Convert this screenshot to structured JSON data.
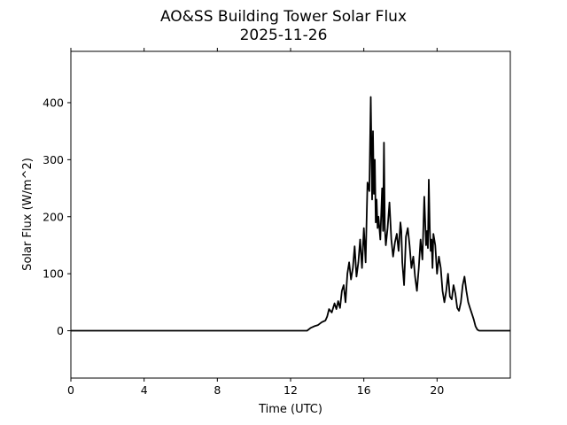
{
  "chart_data": {
    "type": "line",
    "title": "AO&SS Building Tower Solar Flux",
    "subtitle": "2025-11-26",
    "xlabel": "Time (UTC)",
    "ylabel": "Solar Flux (W/m^2)",
    "xlim": [
      0,
      24
    ],
    "ylim": [
      -83,
      490
    ],
    "xticks": [
      0,
      4,
      8,
      12,
      16,
      20
    ],
    "yticks": [
      0,
      100,
      200,
      300,
      400
    ],
    "grid": false,
    "line_color": "#000000",
    "series": [
      {
        "x": [
          0,
          12.9,
          13.1,
          13.3,
          13.5,
          13.7,
          13.9,
          14.0,
          14.1,
          14.25,
          14.4,
          14.5,
          14.6,
          14.7,
          14.8,
          14.9,
          15.0,
          15.1,
          15.2,
          15.3,
          15.4,
          15.5,
          15.6,
          15.7,
          15.8,
          15.9,
          16.0,
          16.1,
          16.2,
          16.3,
          16.38,
          16.45,
          16.5,
          16.55,
          16.6,
          16.65,
          16.7,
          16.75,
          16.8,
          16.9,
          17.0,
          17.05,
          17.1,
          17.15,
          17.2,
          17.3,
          17.4,
          17.5,
          17.6,
          17.7,
          17.8,
          17.9,
          18.0,
          18.05,
          18.1,
          18.2,
          18.3,
          18.4,
          18.5,
          18.6,
          18.7,
          18.8,
          18.9,
          19.0,
          19.1,
          19.2,
          19.3,
          19.4,
          19.45,
          19.5,
          19.55,
          19.6,
          19.65,
          19.7,
          19.75,
          19.8,
          19.9,
          20.0,
          20.1,
          20.2,
          20.3,
          20.4,
          20.5,
          20.6,
          20.7,
          20.8,
          20.9,
          21.0,
          21.1,
          21.2,
          21.3,
          21.4,
          21.5,
          21.6,
          21.7,
          21.8,
          21.9,
          22.0,
          22.1,
          22.2,
          22.3,
          22.4,
          22.5,
          24
        ],
        "y": [
          0,
          0,
          5,
          8,
          10,
          15,
          18,
          25,
          38,
          32,
          48,
          38,
          52,
          40,
          70,
          80,
          50,
          100,
          120,
          90,
          110,
          148,
          95,
          120,
          160,
          110,
          180,
          120,
          260,
          245,
          410,
          230,
          350,
          240,
          300,
          190,
          230,
          180,
          200,
          160,
          250,
          175,
          330,
          180,
          150,
          180,
          225,
          160,
          130,
          155,
          170,
          140,
          190,
          175,
          120,
          80,
          165,
          180,
          150,
          110,
          130,
          95,
          70,
          110,
          160,
          125,
          235,
          150,
          175,
          145,
          265,
          180,
          140,
          160,
          110,
          170,
          150,
          100,
          130,
          110,
          70,
          50,
          70,
          100,
          60,
          55,
          80,
          65,
          40,
          35,
          50,
          80,
          95,
          70,
          50,
          40,
          30,
          20,
          8,
          2,
          0,
          0,
          0,
          0
        ]
      }
    ]
  }
}
